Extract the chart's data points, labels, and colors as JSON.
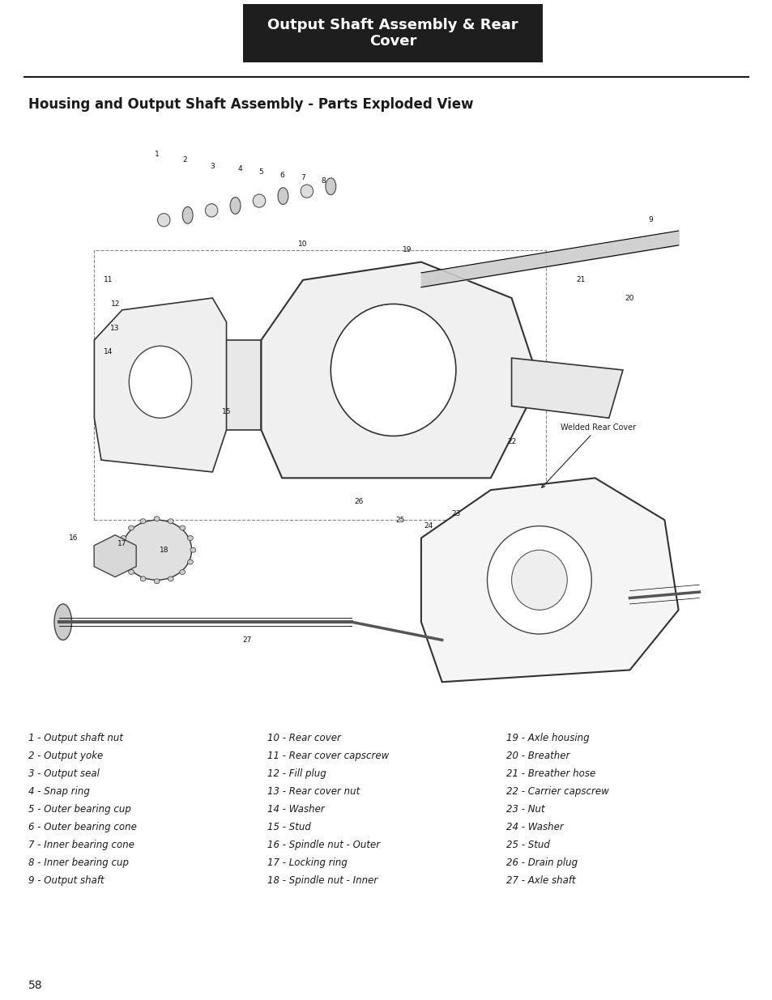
{
  "header_text": "Output Shaft Assembly & Rear\nCover",
  "header_bg": "#1e1e1e",
  "header_text_color": "#ffffff",
  "header_font_size": 13,
  "section_title": "Housing and Output Shaft Assembly - Parts Exploded View",
  "section_title_font_size": 12,
  "page_number": "58",
  "parts_col1": [
    "1 - Output shaft nut",
    "2 - Output yoke",
    "3 - Output seal",
    "4 - Snap ring",
    "5 - Outer bearing cup",
    "6 - Outer bearing cone",
    "7 - Inner bearing cone",
    "8 - Inner bearing cup",
    "9 - Output shaft"
  ],
  "parts_col2": [
    "10 - Rear cover",
    "11 - Rear cover capscrew",
    "12 - Fill plug",
    "13 - Rear cover nut",
    "14 - Washer",
    "15 - Stud",
    "16 - Spindle nut - Outer",
    "17 - Locking ring",
    "18 - Spindle nut - Inner"
  ],
  "parts_col3": [
    "19 - Axle housing",
    "20 - Breather",
    "21 - Breather hose",
    "22 - Carrier capscrew",
    "23 - Nut",
    "24 - Washer",
    "25 - Stud",
    "26 - Drain plug",
    "27 - Axle shaft"
  ],
  "bg_color": "#ffffff",
  "text_color": "#1a1a1a",
  "line_color": "#1a1a1a"
}
